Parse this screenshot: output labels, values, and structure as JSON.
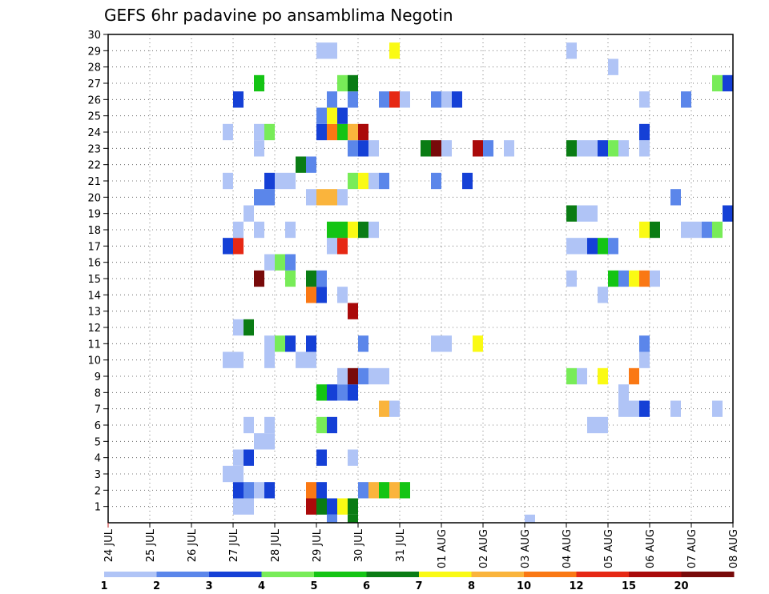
{
  "chart_data": {
    "type": "heatmap",
    "title": "GEFS 6hr padavine po ansamblima Negotin",
    "xlabel": "",
    "ylabel": "",
    "x_tick_labels": [
      "24 JUL",
      "25 JUL",
      "26 JUL",
      "27 JUL",
      "28 JUL",
      "29 JUL",
      "30 JUL",
      "31 JUL",
      "01 AUG",
      "02 AUG",
      "03 AUG",
      "04 AUG",
      "05 AUG",
      "06 AUG",
      "07 AUG",
      "08 AUG"
    ],
    "y_tick_labels": [
      "1",
      "2",
      "3",
      "4",
      "5",
      "6",
      "7",
      "8",
      "9",
      "10",
      "11",
      "12",
      "13",
      "14",
      "15",
      "16",
      "17",
      "18",
      "19",
      "20",
      "21",
      "22",
      "23",
      "24",
      "25",
      "26",
      "27",
      "28",
      "29",
      "30"
    ],
    "x_range_days": [
      0,
      15
    ],
    "y_range": [
      0,
      30
    ],
    "time_step_days": 0.25,
    "grid": true,
    "colorbar": {
      "labels": [
        "1",
        "2",
        "3",
        "4",
        "5",
        "6",
        "7",
        "8",
        "10",
        "12",
        "15",
        "20"
      ],
      "colors": [
        "#b0c4f6",
        "#5b86ea",
        "#1540d6",
        "#78ec58",
        "#14c414",
        "#0a7c14",
        "#fafa14",
        "#fab43c",
        "#fa7814",
        "#e62814",
        "#aa0a0a",
        "#780a0a"
      ]
    },
    "legend_position": "bottom",
    "cell_levels_note": "level index 1-12 maps to colorbar colors",
    "cells": [
      {
        "y": 1,
        "x": [
          [
            3.0,
            1
          ],
          [
            3.25,
            1
          ],
          [
            4.75,
            11
          ],
          [
            5.0,
            6
          ],
          [
            5.25,
            3
          ],
          [
            5.5,
            7
          ],
          [
            5.75,
            6
          ]
        ]
      },
      {
        "y": 0,
        "x": [
          [
            5.25,
            2
          ],
          [
            5.75,
            6
          ],
          [
            10.0,
            1
          ]
        ]
      },
      {
        "y": 2,
        "x": [
          [
            3.0,
            3
          ],
          [
            3.25,
            2
          ],
          [
            3.5,
            1
          ],
          [
            3.75,
            3
          ],
          [
            4.75,
            9
          ],
          [
            5.0,
            3
          ],
          [
            6.0,
            2
          ],
          [
            6.25,
            8
          ],
          [
            6.5,
            5
          ],
          [
            6.75,
            8
          ],
          [
            7.0,
            5
          ]
        ]
      },
      {
        "y": 3,
        "x": [
          [
            2.75,
            1
          ],
          [
            3.0,
            1
          ]
        ]
      },
      {
        "y": 4,
        "x": [
          [
            3.0,
            1
          ],
          [
            3.25,
            3
          ],
          [
            5.0,
            3
          ],
          [
            5.75,
            1
          ]
        ]
      },
      {
        "y": 5,
        "x": [
          [
            3.5,
            1
          ],
          [
            3.75,
            1
          ]
        ]
      },
      {
        "y": 6,
        "x": [
          [
            3.25,
            1
          ],
          [
            3.75,
            1
          ],
          [
            5.0,
            4
          ],
          [
            5.25,
            3
          ],
          [
            11.5,
            1
          ],
          [
            11.75,
            1
          ]
        ]
      },
      {
        "y": 7,
        "x": [
          [
            6.5,
            8
          ],
          [
            6.75,
            1
          ],
          [
            12.25,
            1
          ],
          [
            12.5,
            1
          ],
          [
            12.75,
            3
          ],
          [
            13.5,
            1
          ],
          [
            14.5,
            1
          ]
        ]
      },
      {
        "y": 8,
        "x": [
          [
            5.0,
            5
          ],
          [
            5.25,
            3
          ],
          [
            5.5,
            2
          ],
          [
            5.75,
            3
          ],
          [
            12.25,
            1
          ]
        ]
      },
      {
        "y": 9,
        "x": [
          [
            5.5,
            1
          ],
          [
            5.75,
            12
          ],
          [
            6.0,
            2
          ],
          [
            6.25,
            1
          ],
          [
            6.5,
            1
          ],
          [
            11.0,
            4
          ],
          [
            11.25,
            1
          ],
          [
            11.75,
            7
          ],
          [
            12.5,
            9
          ]
        ]
      },
      {
        "y": 10,
        "x": [
          [
            2.75,
            1
          ],
          [
            3.0,
            1
          ],
          [
            3.75,
            1
          ],
          [
            4.5,
            1
          ],
          [
            4.75,
            1
          ],
          [
            12.75,
            1
          ]
        ]
      },
      {
        "y": 11,
        "x": [
          [
            3.75,
            1
          ],
          [
            4.0,
            4
          ],
          [
            4.25,
            3
          ],
          [
            4.75,
            3
          ],
          [
            6.0,
            2
          ],
          [
            7.75,
            1
          ],
          [
            8.0,
            1
          ],
          [
            8.75,
            7
          ],
          [
            12.75,
            2
          ]
        ]
      },
      {
        "y": 12,
        "x": [
          [
            3.0,
            1
          ],
          [
            3.25,
            6
          ]
        ]
      },
      {
        "y": 13,
        "x": [
          [
            5.75,
            11
          ]
        ]
      },
      {
        "y": 14,
        "x": [
          [
            4.75,
            9
          ],
          [
            5.0,
            3
          ],
          [
            5.5,
            1
          ],
          [
            11.75,
            1
          ]
        ]
      },
      {
        "y": 15,
        "x": [
          [
            3.5,
            12
          ],
          [
            4.25,
            4
          ],
          [
            4.75,
            6
          ],
          [
            5.0,
            2
          ],
          [
            11.0,
            1
          ],
          [
            12.0,
            5
          ],
          [
            12.25,
            2
          ],
          [
            12.5,
            7
          ],
          [
            12.75,
            9
          ],
          [
            13.0,
            1
          ]
        ]
      },
      {
        "y": 16,
        "x": [
          [
            3.75,
            1
          ],
          [
            4.0,
            4
          ],
          [
            4.25,
            2
          ]
        ]
      },
      {
        "y": 17,
        "x": [
          [
            2.75,
            3
          ],
          [
            3.0,
            10
          ],
          [
            5.25,
            1
          ],
          [
            5.5,
            10
          ],
          [
            11.0,
            1
          ],
          [
            11.25,
            1
          ],
          [
            11.5,
            3
          ],
          [
            11.75,
            5
          ],
          [
            12.0,
            2
          ]
        ]
      },
      {
        "y": 18,
        "x": [
          [
            3.0,
            1
          ],
          [
            3.5,
            1
          ],
          [
            4.25,
            1
          ],
          [
            5.25,
            5
          ],
          [
            5.5,
            5
          ],
          [
            5.75,
            7
          ],
          [
            6.0,
            6
          ],
          [
            6.25,
            1
          ],
          [
            12.75,
            7
          ],
          [
            13.0,
            6
          ],
          [
            13.75,
            1
          ],
          [
            14.0,
            1
          ],
          [
            14.25,
            2
          ],
          [
            14.5,
            4
          ]
        ]
      },
      {
        "y": 19,
        "x": [
          [
            3.25,
            1
          ],
          [
            11.0,
            6
          ],
          [
            11.25,
            1
          ],
          [
            11.5,
            1
          ],
          [
            14.75,
            3
          ]
        ]
      },
      {
        "y": 20,
        "x": [
          [
            3.5,
            2
          ],
          [
            3.75,
            2
          ],
          [
            4.75,
            1
          ],
          [
            5.0,
            8
          ],
          [
            5.25,
            8
          ],
          [
            5.5,
            1
          ],
          [
            13.5,
            2
          ]
        ]
      },
      {
        "y": 21,
        "x": [
          [
            2.75,
            1
          ],
          [
            3.75,
            3
          ],
          [
            4.0,
            1
          ],
          [
            4.25,
            1
          ],
          [
            5.75,
            4
          ],
          [
            6.0,
            7
          ],
          [
            6.25,
            1
          ],
          [
            6.5,
            2
          ],
          [
            7.75,
            2
          ],
          [
            8.5,
            3
          ]
        ]
      },
      {
        "y": 22,
        "x": [
          [
            4.5,
            6
          ],
          [
            4.75,
            2
          ]
        ]
      },
      {
        "y": 23,
        "x": [
          [
            3.5,
            1
          ],
          [
            5.75,
            2
          ],
          [
            6.0,
            3
          ],
          [
            6.25,
            1
          ],
          [
            7.5,
            6
          ],
          [
            7.75,
            12
          ],
          [
            8.0,
            1
          ],
          [
            8.75,
            11
          ],
          [
            9.0,
            2
          ],
          [
            9.5,
            1
          ],
          [
            11.0,
            6
          ],
          [
            11.25,
            1
          ],
          [
            11.5,
            1
          ],
          [
            11.75,
            3
          ],
          [
            12.0,
            4
          ],
          [
            12.25,
            1
          ],
          [
            12.75,
            1
          ]
        ]
      },
      {
        "y": 24,
        "x": [
          [
            2.75,
            1
          ],
          [
            3.5,
            1
          ],
          [
            3.75,
            4
          ],
          [
            5.0,
            3
          ],
          [
            5.25,
            9
          ],
          [
            5.5,
            5
          ],
          [
            5.75,
            8
          ],
          [
            6.0,
            11
          ],
          [
            12.75,
            3
          ]
        ]
      },
      {
        "y": 25,
        "x": [
          [
            5.0,
            2
          ],
          [
            5.25,
            7
          ],
          [
            5.5,
            3
          ]
        ]
      },
      {
        "y": 26,
        "x": [
          [
            3.0,
            3
          ],
          [
            5.25,
            2
          ],
          [
            5.75,
            2
          ],
          [
            6.5,
            2
          ],
          [
            6.75,
            10
          ],
          [
            7.0,
            1
          ],
          [
            7.75,
            2
          ],
          [
            8.0,
            1
          ],
          [
            8.25,
            3
          ],
          [
            12.75,
            1
          ],
          [
            13.75,
            2
          ]
        ]
      },
      {
        "y": 27,
        "x": [
          [
            3.5,
            5
          ],
          [
            5.5,
            4
          ],
          [
            5.75,
            6
          ],
          [
            14.5,
            4
          ],
          [
            14.75,
            3
          ]
        ]
      },
      {
        "y": 28,
        "x": [
          [
            12.0,
            1
          ]
        ]
      },
      {
        "y": 29,
        "x": [
          [
            5.0,
            1
          ],
          [
            5.25,
            1
          ],
          [
            6.75,
            7
          ],
          [
            11.0,
            1
          ]
        ]
      }
    ]
  }
}
